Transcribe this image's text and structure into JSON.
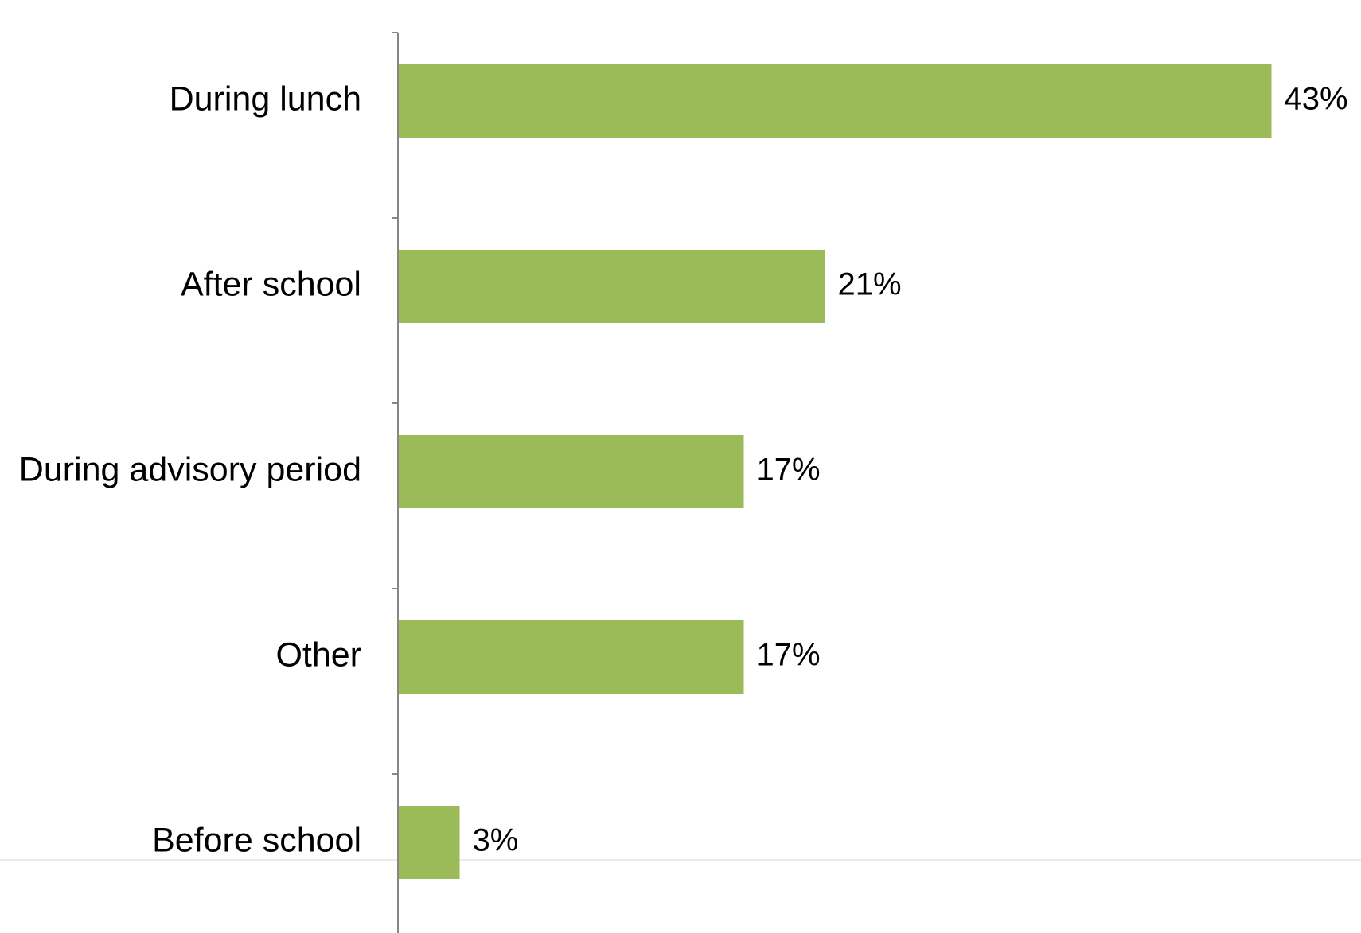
{
  "chart_data": {
    "type": "bar",
    "orientation": "horizontal",
    "categories": [
      "During lunch",
      "After school",
      "During advisory period",
      "Other",
      "Before school"
    ],
    "values": [
      43,
      21,
      17,
      17,
      3
    ],
    "value_labels": [
      "43%",
      "21%",
      "17%",
      "17%",
      "3%"
    ],
    "title": "",
    "xlabel": "",
    "ylabel": "",
    "unit": "%",
    "bar_color": "#9bbb59",
    "axis_color": "#868686",
    "grid": false,
    "legend": "none"
  }
}
